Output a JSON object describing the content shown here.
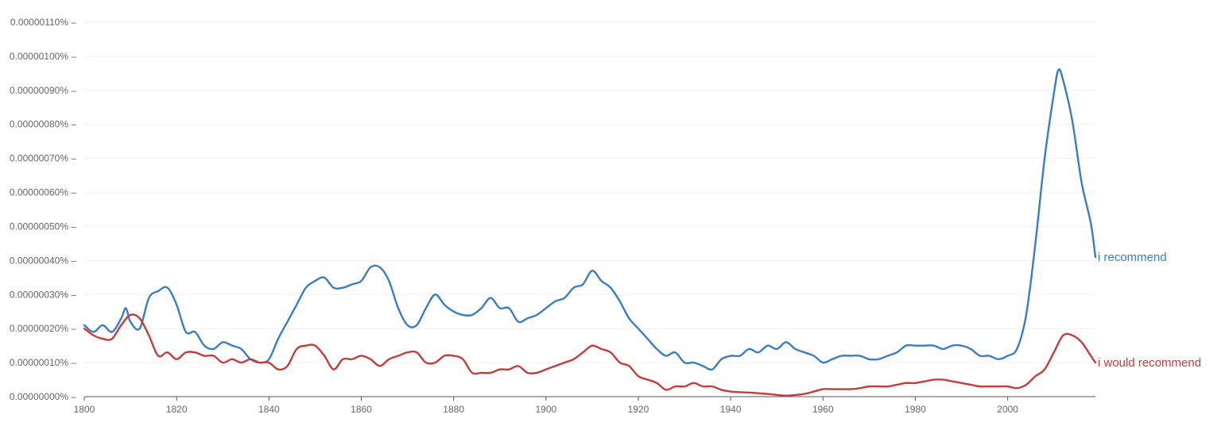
{
  "chart_data": {
    "type": "line",
    "title": "",
    "xlabel": "",
    "ylabel": "",
    "xlim": [
      1800,
      2019
    ],
    "ylim": [
      0,
      1.1e-06
    ],
    "x_ticks": [
      1800,
      1820,
      1840,
      1860,
      1880,
      1900,
      1920,
      1940,
      1960,
      1980,
      2000
    ],
    "x_tick_labels": [
      "1800",
      "1820",
      "1840",
      "1860",
      "1880",
      "1900",
      "1920",
      "1940",
      "1960",
      "1980",
      "2000"
    ],
    "y_ticks": [
      0,
      1e-07,
      2e-07,
      3e-07,
      4e-07,
      5e-07,
      6e-07,
      7e-07,
      8e-07,
      9e-07,
      1e-06,
      1.1e-06
    ],
    "y_tick_labels": [
      "0.00000000%",
      "0.00000010%",
      "0.00000020%",
      "0.00000030%",
      "0.00000040%",
      "0.00000050%",
      "0.00000060%",
      "0.00000070%",
      "0.00000080%",
      "0.00000090%",
      "0.00000100%",
      "0.00000110%"
    ],
    "grid": true,
    "legend": "end-of-line labels",
    "series": [
      {
        "name": "i recommend",
        "color": "#3b7dc4",
        "points": [
          [
            1800,
            2.1e-07
          ],
          [
            1802,
            1.9e-07
          ],
          [
            1804,
            2.1e-07
          ],
          [
            1806,
            1.9e-07
          ],
          [
            1808,
            2.3e-07
          ],
          [
            1809,
            2.6e-07
          ],
          [
            1810,
            2.2e-07
          ],
          [
            1812,
            2e-07
          ],
          [
            1814,
            2.9e-07
          ],
          [
            1816,
            3.1e-07
          ],
          [
            1818,
            3.2e-07
          ],
          [
            1820,
            2.7e-07
          ],
          [
            1822,
            1.9e-07
          ],
          [
            1824,
            1.9e-07
          ],
          [
            1826,
            1.5e-07
          ],
          [
            1828,
            1.4e-07
          ],
          [
            1830,
            1.6e-07
          ],
          [
            1832,
            1.5e-07
          ],
          [
            1834,
            1.4e-07
          ],
          [
            1836,
            1.1e-07
          ],
          [
            1838,
            1e-07
          ],
          [
            1840,
            1.1e-07
          ],
          [
            1842,
            1.7e-07
          ],
          [
            1844,
            2.2e-07
          ],
          [
            1846,
            2.7e-07
          ],
          [
            1848,
            3.2e-07
          ],
          [
            1850,
            3.4e-07
          ],
          [
            1852,
            3.5e-07
          ],
          [
            1854,
            3.2e-07
          ],
          [
            1856,
            3.2e-07
          ],
          [
            1858,
            3.3e-07
          ],
          [
            1860,
            3.4e-07
          ],
          [
            1862,
            3.8e-07
          ],
          [
            1864,
            3.8e-07
          ],
          [
            1866,
            3.4e-07
          ],
          [
            1868,
            2.6e-07
          ],
          [
            1870,
            2.1e-07
          ],
          [
            1872,
            2.1e-07
          ],
          [
            1874,
            2.6e-07
          ],
          [
            1876,
            3e-07
          ],
          [
            1878,
            2.7e-07
          ],
          [
            1880,
            2.5e-07
          ],
          [
            1882,
            2.4e-07
          ],
          [
            1884,
            2.4e-07
          ],
          [
            1886,
            2.6e-07
          ],
          [
            1888,
            2.9e-07
          ],
          [
            1890,
            2.6e-07
          ],
          [
            1892,
            2.6e-07
          ],
          [
            1894,
            2.2e-07
          ],
          [
            1896,
            2.3e-07
          ],
          [
            1898,
            2.4e-07
          ],
          [
            1900,
            2.6e-07
          ],
          [
            1902,
            2.8e-07
          ],
          [
            1904,
            2.9e-07
          ],
          [
            1906,
            3.2e-07
          ],
          [
            1908,
            3.3e-07
          ],
          [
            1910,
            3.7e-07
          ],
          [
            1912,
            3.4e-07
          ],
          [
            1914,
            3.2e-07
          ],
          [
            1916,
            2.8e-07
          ],
          [
            1918,
            2.3e-07
          ],
          [
            1920,
            2e-07
          ],
          [
            1922,
            1.7e-07
          ],
          [
            1924,
            1.4e-07
          ],
          [
            1926,
            1.2e-07
          ],
          [
            1928,
            1.3e-07
          ],
          [
            1930,
            1e-07
          ],
          [
            1932,
            1e-07
          ],
          [
            1934,
            9e-08
          ],
          [
            1936,
            8e-08
          ],
          [
            1938,
            1.1e-07
          ],
          [
            1940,
            1.2e-07
          ],
          [
            1942,
            1.2e-07
          ],
          [
            1944,
            1.4e-07
          ],
          [
            1946,
            1.3e-07
          ],
          [
            1948,
            1.5e-07
          ],
          [
            1950,
            1.4e-07
          ],
          [
            1952,
            1.6e-07
          ],
          [
            1954,
            1.4e-07
          ],
          [
            1956,
            1.3e-07
          ],
          [
            1958,
            1.2e-07
          ],
          [
            1960,
            1e-07
          ],
          [
            1962,
            1.1e-07
          ],
          [
            1964,
            1.2e-07
          ],
          [
            1966,
            1.2e-07
          ],
          [
            1968,
            1.2e-07
          ],
          [
            1970,
            1.1e-07
          ],
          [
            1972,
            1.1e-07
          ],
          [
            1974,
            1.2e-07
          ],
          [
            1976,
            1.3e-07
          ],
          [
            1978,
            1.5e-07
          ],
          [
            1980,
            1.5e-07
          ],
          [
            1982,
            1.5e-07
          ],
          [
            1984,
            1.5e-07
          ],
          [
            1986,
            1.4e-07
          ],
          [
            1988,
            1.5e-07
          ],
          [
            1990,
            1.5e-07
          ],
          [
            1992,
            1.4e-07
          ],
          [
            1994,
            1.2e-07
          ],
          [
            1996,
            1.2e-07
          ],
          [
            1998,
            1.1e-07
          ],
          [
            2000,
            1.2e-07
          ],
          [
            2002,
            1.4e-07
          ],
          [
            2004,
            2.4e-07
          ],
          [
            2006,
            4.5e-07
          ],
          [
            2008,
            7e-07
          ],
          [
            2010,
            8.9e-07
          ],
          [
            2011,
            9.6e-07
          ],
          [
            2012,
            9.3e-07
          ],
          [
            2014,
            8.1e-07
          ],
          [
            2016,
            6.3e-07
          ],
          [
            2018,
            5.1e-07
          ],
          [
            2019,
            4.1e-07
          ]
        ]
      },
      {
        "name": "i would recommend",
        "color": "#c43d3d",
        "points": [
          [
            1800,
            2e-07
          ],
          [
            1802,
            1.8e-07
          ],
          [
            1804,
            1.7e-07
          ],
          [
            1806,
            1.7e-07
          ],
          [
            1808,
            2.1e-07
          ],
          [
            1810,
            2.4e-07
          ],
          [
            1812,
            2.3e-07
          ],
          [
            1814,
            1.8e-07
          ],
          [
            1816,
            1.2e-07
          ],
          [
            1818,
            1.3e-07
          ],
          [
            1820,
            1.1e-07
          ],
          [
            1822,
            1.3e-07
          ],
          [
            1824,
            1.3e-07
          ],
          [
            1826,
            1.2e-07
          ],
          [
            1828,
            1.2e-07
          ],
          [
            1830,
            1e-07
          ],
          [
            1832,
            1.1e-07
          ],
          [
            1834,
            1e-07
          ],
          [
            1836,
            1.1e-07
          ],
          [
            1838,
            1e-07
          ],
          [
            1840,
            1e-07
          ],
          [
            1842,
            8e-08
          ],
          [
            1844,
            9e-08
          ],
          [
            1846,
            1.4e-07
          ],
          [
            1848,
            1.5e-07
          ],
          [
            1850,
            1.5e-07
          ],
          [
            1852,
            1.2e-07
          ],
          [
            1854,
            8e-08
          ],
          [
            1856,
            1.1e-07
          ],
          [
            1858,
            1.1e-07
          ],
          [
            1860,
            1.2e-07
          ],
          [
            1862,
            1.1e-07
          ],
          [
            1864,
            9e-08
          ],
          [
            1866,
            1.1e-07
          ],
          [
            1868,
            1.2e-07
          ],
          [
            1870,
            1.3e-07
          ],
          [
            1872,
            1.3e-07
          ],
          [
            1874,
            1e-07
          ],
          [
            1876,
            1e-07
          ],
          [
            1878,
            1.2e-07
          ],
          [
            1880,
            1.2e-07
          ],
          [
            1882,
            1.1e-07
          ],
          [
            1884,
            7e-08
          ],
          [
            1886,
            7e-08
          ],
          [
            1888,
            7e-08
          ],
          [
            1890,
            8e-08
          ],
          [
            1892,
            8e-08
          ],
          [
            1894,
            9e-08
          ],
          [
            1896,
            7e-08
          ],
          [
            1898,
            7e-08
          ],
          [
            1900,
            8e-08
          ],
          [
            1902,
            9e-08
          ],
          [
            1904,
            1e-07
          ],
          [
            1906,
            1.1e-07
          ],
          [
            1908,
            1.3e-07
          ],
          [
            1910,
            1.5e-07
          ],
          [
            1912,
            1.4e-07
          ],
          [
            1914,
            1.3e-07
          ],
          [
            1916,
            1e-07
          ],
          [
            1918,
            9e-08
          ],
          [
            1920,
            6e-08
          ],
          [
            1922,
            5e-08
          ],
          [
            1924,
            4e-08
          ],
          [
            1926,
            2e-08
          ],
          [
            1928,
            3e-08
          ],
          [
            1930,
            3e-08
          ],
          [
            1932,
            4e-08
          ],
          [
            1934,
            3e-08
          ],
          [
            1936,
            3e-08
          ],
          [
            1938,
            2e-08
          ],
          [
            1940,
            1.5e-08
          ],
          [
            1942,
            1.3e-08
          ],
          [
            1944,
            1.2e-08
          ],
          [
            1946,
            1e-08
          ],
          [
            1948,
            8e-09
          ],
          [
            1950,
            5e-09
          ],
          [
            1952,
            3e-09
          ],
          [
            1954,
            5e-09
          ],
          [
            1956,
            8e-09
          ],
          [
            1958,
            1.5e-08
          ],
          [
            1960,
            2.2e-08
          ],
          [
            1962,
            2.2e-08
          ],
          [
            1964,
            2.2e-08
          ],
          [
            1966,
            2.2e-08
          ],
          [
            1968,
            2.5e-08
          ],
          [
            1970,
            3e-08
          ],
          [
            1972,
            3e-08
          ],
          [
            1974,
            3e-08
          ],
          [
            1976,
            3.5e-08
          ],
          [
            1978,
            4e-08
          ],
          [
            1980,
            4e-08
          ],
          [
            1982,
            4.5e-08
          ],
          [
            1984,
            5e-08
          ],
          [
            1986,
            5e-08
          ],
          [
            1988,
            4.5e-08
          ],
          [
            1990,
            4e-08
          ],
          [
            1992,
            3.5e-08
          ],
          [
            1994,
            3e-08
          ],
          [
            1996,
            3e-08
          ],
          [
            1998,
            3e-08
          ],
          [
            2000,
            3e-08
          ],
          [
            2002,
            2.5e-08
          ],
          [
            2004,
            3.5e-08
          ],
          [
            2006,
            6e-08
          ],
          [
            2008,
            8e-08
          ],
          [
            2010,
            1.3e-07
          ],
          [
            2012,
            1.8e-07
          ],
          [
            2014,
            1.8e-07
          ],
          [
            2016,
            1.6e-07
          ],
          [
            2018,
            1.2e-07
          ],
          [
            2019,
            1e-07
          ]
        ]
      }
    ]
  }
}
